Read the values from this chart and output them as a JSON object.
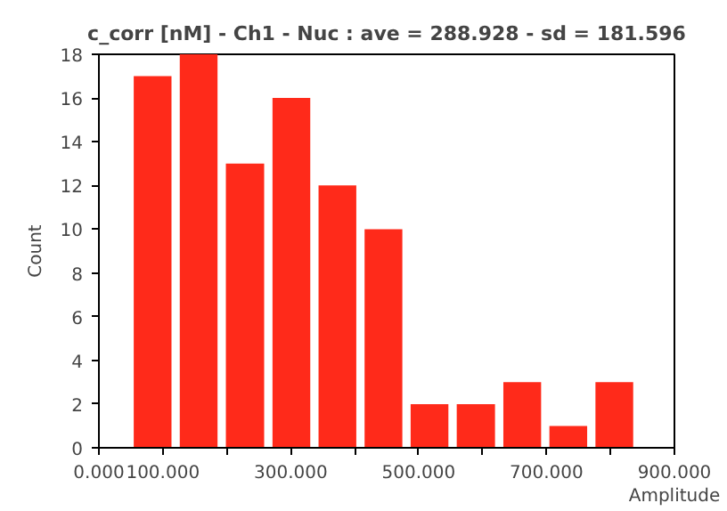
{
  "chart_data": {
    "type": "histogram",
    "title": "c_corr [nM] - Ch1 - Nuc : ave = 288.928 - sd = 181.596",
    "xlabel": "Amplitude",
    "ylabel": "Count",
    "bins": [
      48,
      120,
      192,
      265,
      337,
      409,
      481,
      553,
      626,
      698,
      770,
      842
    ],
    "values": [
      17,
      18,
      13,
      16,
      12,
      10,
      2,
      2,
      3,
      1,
      3
    ],
    "color": "#ff2a1a",
    "xlim": [
      0,
      900
    ],
    "ylim": [
      0,
      18
    ],
    "xticks": [
      {
        "value": 0,
        "label": "0.000"
      },
      {
        "value": 100,
        "label": "100.000"
      },
      {
        "value": 200,
        "label": null
      },
      {
        "value": 300,
        "label": "300.000"
      },
      {
        "value": 400,
        "label": null
      },
      {
        "value": 500,
        "label": "500.000"
      },
      {
        "value": 600,
        "label": null
      },
      {
        "value": 700,
        "label": "700.000"
      },
      {
        "value": 800,
        "label": null
      },
      {
        "value": 900,
        "label": "900.000"
      }
    ],
    "yticks": [
      0,
      2,
      4,
      6,
      8,
      10,
      12,
      14,
      16,
      18
    ],
    "grid": false
  }
}
